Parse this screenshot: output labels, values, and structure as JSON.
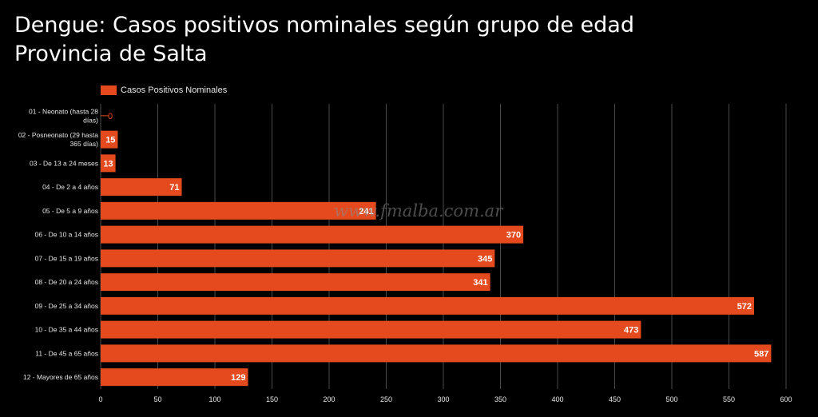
{
  "title_line1": "Dengue: Casos positivos nominales  según grupo de edad",
  "title_line2": "Provincia de Salta",
  "watermark": "www.fmalba.com.ar",
  "colors": {
    "bar": "#e44a1d",
    "background": "#000000",
    "grid": "#4a4a4a",
    "text": "#ffffff"
  },
  "chart_data": {
    "type": "bar",
    "orientation": "horizontal",
    "categories": [
      "01 - Neonato (hasta 28 días)",
      "02 - Posneonato (29 hasta 365 días)",
      "03 - De 13 a 24 meses",
      "04 - De 2 a 4 años",
      "05 - De 5 a 9 años",
      "06 - De 10 a 14 años",
      "07 - De 15 a 19 años",
      "08 - De 20 a 24 años",
      "09 - De 25 a 34 años",
      "10 - De 35 a 44 años",
      "11 - De 45 a 65 años",
      "12 - Mayores de 65 años"
    ],
    "series": [
      {
        "name": "Casos Positivos Nominales",
        "values": [
          0,
          15,
          13,
          71,
          241,
          370,
          345,
          341,
          572,
          473,
          587,
          129
        ]
      }
    ],
    "xlim": [
      0,
      600
    ],
    "xticks": [
      0,
      50,
      100,
      150,
      200,
      250,
      300,
      350,
      400,
      450,
      500,
      550,
      600
    ],
    "grid": true,
    "legend_position": "top-left",
    "data_labels": true
  }
}
